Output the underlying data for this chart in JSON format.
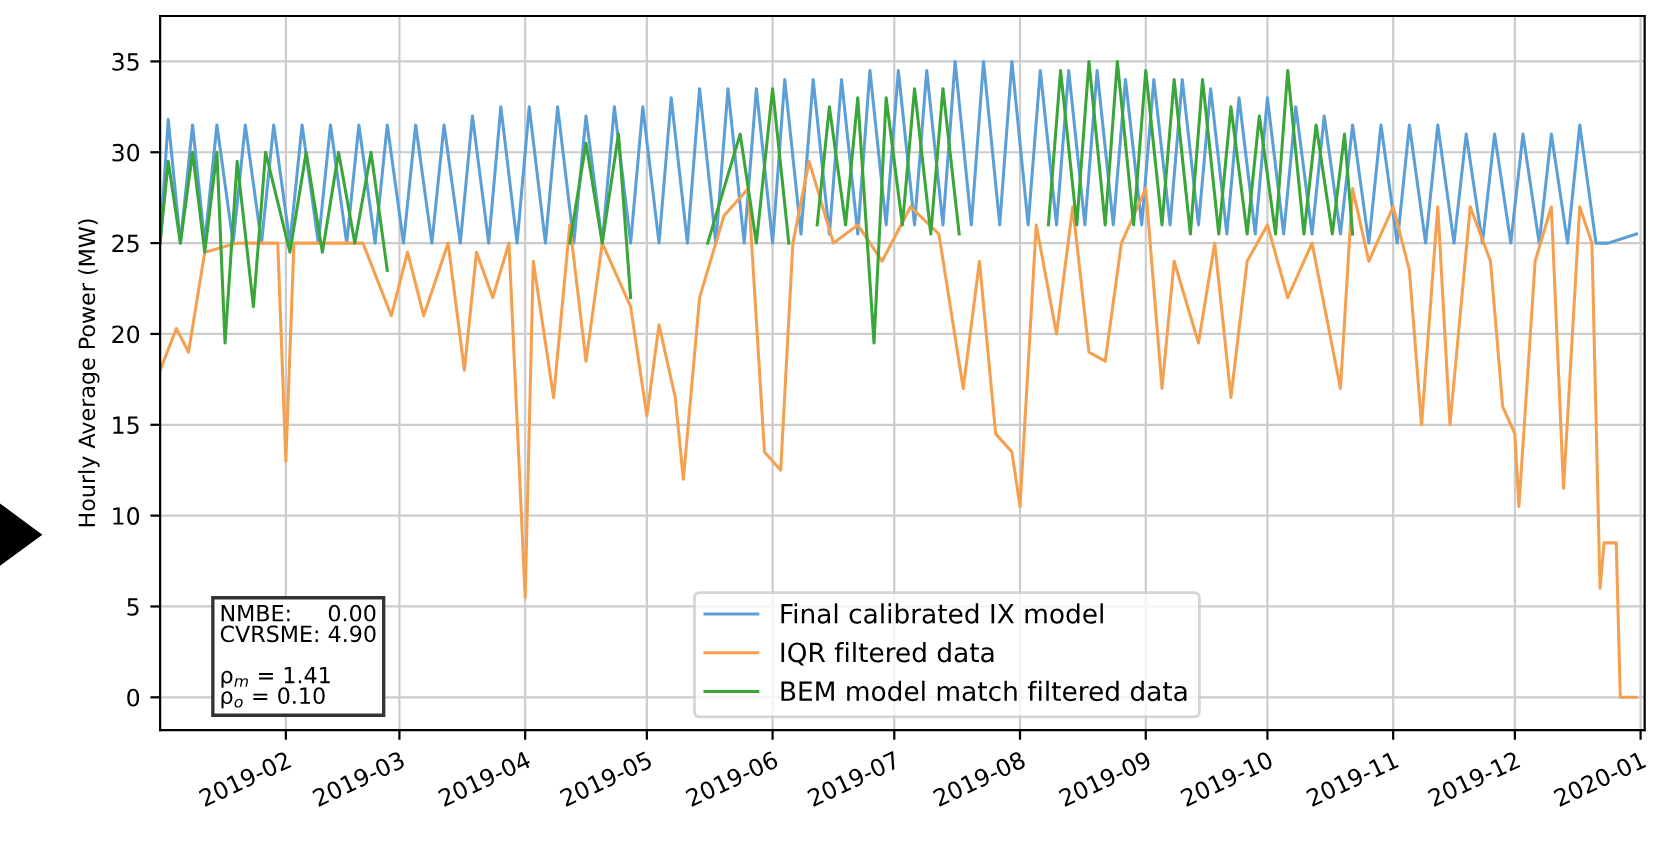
{
  "chart_data": {
    "type": "line",
    "ylabel": "Hourly Average Power (MW)",
    "xlim": [
      "2019-01-01",
      "2020-01-02"
    ],
    "ylim": [
      -1.8,
      37.5
    ],
    "xticks": [
      "2019-02",
      "2019-03",
      "2019-04",
      "2019-05",
      "2019-06",
      "2019-07",
      "2019-08",
      "2019-09",
      "2019-10",
      "2019-11",
      "2019-12",
      "2020-01"
    ],
    "yticks": [
      0,
      5,
      10,
      15,
      20,
      25,
      30,
      35
    ],
    "grid": true,
    "legend": "bottom",
    "line_style": "solid",
    "marker": "none",
    "annotations": [
      "NMBE:     0.00\nCVRSME: 4.90\n\nρ$_{m}$ = 1.41\nρ$_{o}$ = 0.10"
    ],
    "series": [
      {
        "name": "Final calibrated IX model",
        "color": "#5b9fd6",
        "x": [
          "2019-01-01",
          "2019-01-03",
          "2019-01-06",
          "2019-01-09",
          "2019-01-12",
          "2019-01-15",
          "2019-01-19",
          "2019-01-22",
          "2019-01-26",
          "2019-01-29",
          "2019-02-02",
          "2019-02-05",
          "2019-02-09",
          "2019-02-12",
          "2019-02-16",
          "2019-02-19",
          "2019-02-23",
          "2019-02-26",
          "2019-03-02",
          "2019-03-05",
          "2019-03-09",
          "2019-03-12",
          "2019-03-16",
          "2019-03-19",
          "2019-03-23",
          "2019-03-26",
          "2019-03-30",
          "2019-04-02",
          "2019-04-06",
          "2019-04-09",
          "2019-04-13",
          "2019-04-16",
          "2019-04-20",
          "2019-04-23",
          "2019-04-27",
          "2019-04-30",
          "2019-05-04",
          "2019-05-07",
          "2019-05-11",
          "2019-05-14",
          "2019-05-18",
          "2019-05-21",
          "2019-05-25",
          "2019-05-28",
          "2019-06-01",
          "2019-06-04",
          "2019-06-08",
          "2019-06-11",
          "2019-06-15",
          "2019-06-18",
          "2019-06-22",
          "2019-06-25",
          "2019-06-29",
          "2019-07-02",
          "2019-07-06",
          "2019-07-09",
          "2019-07-13",
          "2019-07-16",
          "2019-07-20",
          "2019-07-23",
          "2019-07-27",
          "2019-07-30",
          "2019-08-03",
          "2019-08-06",
          "2019-08-10",
          "2019-08-13",
          "2019-08-17",
          "2019-08-20",
          "2019-08-24",
          "2019-08-27",
          "2019-08-31",
          "2019-09-03",
          "2019-09-07",
          "2019-09-10",
          "2019-09-14",
          "2019-09-17",
          "2019-09-21",
          "2019-09-24",
          "2019-09-28",
          "2019-10-01",
          "2019-10-05",
          "2019-10-08",
          "2019-10-12",
          "2019-10-15",
          "2019-10-19",
          "2019-10-22",
          "2019-10-26",
          "2019-10-29",
          "2019-11-02",
          "2019-11-05",
          "2019-11-09",
          "2019-11-12",
          "2019-11-16",
          "2019-11-19",
          "2019-11-23",
          "2019-11-26",
          "2019-11-30",
          "2019-12-03",
          "2019-12-07",
          "2019-12-10",
          "2019-12-14",
          "2019-12-17",
          "2019-12-21",
          "2019-12-24",
          "2019-12-31"
        ],
        "values": [
          25,
          31.8,
          25,
          31.5,
          25,
          31.5,
          25,
          31.5,
          25,
          31.5,
          25,
          31.5,
          25,
          31.5,
          25,
          31.5,
          25,
          31.5,
          25,
          31.5,
          25,
          31.5,
          25,
          32,
          25,
          32.5,
          25,
          32.5,
          25,
          32.5,
          25,
          32,
          25,
          32.5,
          25,
          32.5,
          25,
          33,
          25,
          33.5,
          25,
          33.5,
          25,
          33.5,
          25,
          34,
          25.5,
          34,
          25.5,
          34,
          25.5,
          34.5,
          26,
          34.5,
          26,
          34.5,
          26,
          35,
          26,
          35,
          26,
          35,
          26,
          34.5,
          26,
          34.5,
          26,
          34.5,
          26,
          34,
          26,
          34,
          26,
          34,
          26,
          33.5,
          25.5,
          33,
          25.5,
          33,
          25.5,
          32.5,
          25.5,
          32,
          25.5,
          31.5,
          25,
          31.5,
          25,
          31.5,
          25,
          31.5,
          25,
          31,
          25,
          31,
          25,
          31,
          25,
          31,
          25,
          31.5,
          25,
          25,
          25.5
        ]
      },
      {
        "name": "IQR filtered data",
        "color": "#f5a050",
        "x": [
          "2019-01-01",
          "2019-01-05",
          "2019-01-08",
          "2019-01-12",
          "2019-01-20",
          "2019-01-30",
          "2019-02-01",
          "2019-02-03",
          "2019-02-20",
          "2019-02-27",
          "2019-03-03",
          "2019-03-07",
          "2019-03-13",
          "2019-03-17",
          "2019-03-20",
          "2019-03-24",
          "2019-03-28",
          "2019-04-01",
          "2019-04-03",
          "2019-04-08",
          "2019-04-12",
          "2019-04-16",
          "2019-04-20",
          "2019-04-27",
          "2019-05-01",
          "2019-05-04",
          "2019-05-08",
          "2019-05-10",
          "2019-05-14",
          "2019-05-20",
          "2019-05-26",
          "2019-05-30",
          "2019-06-03",
          "2019-06-06",
          "2019-06-10",
          "2019-06-16",
          "2019-06-22",
          "2019-06-28",
          "2019-07-05",
          "2019-07-12",
          "2019-07-18",
          "2019-07-22",
          "2019-07-26",
          "2019-07-30",
          "2019-08-01",
          "2019-08-05",
          "2019-08-10",
          "2019-08-14",
          "2019-08-18",
          "2019-08-22",
          "2019-08-26",
          "2019-09-01",
          "2019-09-05",
          "2019-09-08",
          "2019-09-14",
          "2019-09-18",
          "2019-09-22",
          "2019-09-26",
          "2019-10-01",
          "2019-10-06",
          "2019-10-12",
          "2019-10-19",
          "2019-10-22",
          "2019-10-26",
          "2019-11-01",
          "2019-11-05",
          "2019-11-08",
          "2019-11-12",
          "2019-11-15",
          "2019-11-20",
          "2019-11-25",
          "2019-11-28",
          "2019-12-01",
          "2019-12-02",
          "2019-12-06",
          "2019-12-10",
          "2019-12-13",
          "2019-12-17",
          "2019-12-20",
          "2019-12-22",
          "2019-12-23",
          "2019-12-26",
          "2019-12-27",
          "2019-12-31"
        ],
        "values": [
          18,
          20.3,
          19,
          24.5,
          25,
          25,
          13,
          25,
          25,
          21,
          24.5,
          21,
          25,
          18,
          24.5,
          22,
          25,
          5.5,
          24,
          16.5,
          26,
          18.5,
          25,
          21.5,
          15.5,
          20.5,
          16.5,
          12,
          22,
          26.5,
          28,
          13.5,
          12.5,
          25,
          29.5,
          25,
          26,
          24,
          27,
          25.5,
          17,
          24,
          14.5,
          13.5,
          10.5,
          26,
          20,
          27,
          19,
          18.5,
          25,
          28,
          17,
          24,
          19.5,
          25,
          16.5,
          24,
          26,
          22,
          25,
          17,
          28,
          24,
          27,
          23.5,
          15,
          27,
          15,
          27,
          24,
          16,
          14.5,
          10.5,
          24,
          27,
          11.5,
          27,
          25,
          6,
          8.5,
          8.5,
          0,
          0
        ]
      },
      {
        "name": "BEM model match filtered data",
        "color": "#3aa63a",
        "x": [
          "2019-01-01",
          "2019-01-03",
          "2019-01-06",
          "2019-01-09",
          "2019-01-12",
          "2019-01-15",
          "2019-01-17",
          "2019-01-20",
          "2019-01-24",
          "2019-01-27",
          "2019-02-02",
          "2019-02-06",
          "2019-02-10",
          "2019-02-14",
          "2019-02-18",
          "2019-02-22",
          "2019-02-26",
          "2019-02-28",
          "2019-04-12",
          "2019-04-16",
          "2019-04-20",
          "2019-04-24",
          "2019-04-27",
          "2019-04-29",
          "2019-05-16",
          "2019-05-20",
          "2019-05-24",
          "2019-05-28",
          "2019-06-01",
          "2019-06-05",
          "2019-06-07",
          "2019-06-12",
          "2019-06-15",
          "2019-06-19",
          "2019-06-22",
          "2019-06-26",
          "2019-06-29",
          "2019-07-03",
          "2019-07-06",
          "2019-07-10",
          "2019-07-13",
          "2019-07-17",
          "2019-07-20",
          "2019-08-08",
          "2019-08-11",
          "2019-08-15",
          "2019-08-18",
          "2019-08-22",
          "2019-08-25",
          "2019-08-29",
          "2019-09-01",
          "2019-09-05",
          "2019-09-08",
          "2019-09-12",
          "2019-09-15",
          "2019-09-19",
          "2019-09-22",
          "2019-09-26",
          "2019-09-29",
          "2019-10-03",
          "2019-10-06",
          "2019-10-10",
          "2019-10-13",
          "2019-10-17",
          "2019-10-20",
          "2019-10-22"
        ],
        "values": [
          25,
          29.5,
          25,
          30,
          24.5,
          30,
          19.5,
          29.5,
          21.5,
          30,
          24.5,
          30,
          24.5,
          30,
          25,
          30,
          23.5,
          null,
          25,
          30.5,
          25,
          31,
          22,
          null,
          25,
          28,
          31,
          25,
          33.5,
          25,
          null,
          26,
          32.5,
          26,
          33,
          19.5,
          33,
          26,
          33.5,
          25.5,
          33.5,
          25.5,
          null,
          26,
          34.5,
          26,
          35,
          26,
          35,
          26,
          34.5,
          26,
          34,
          25.5,
          34,
          25.5,
          32.5,
          25.5,
          32,
          25.5,
          34.5,
          25.5,
          31.5,
          25.5,
          31,
          25.5
        ]
      }
    ]
  }
}
